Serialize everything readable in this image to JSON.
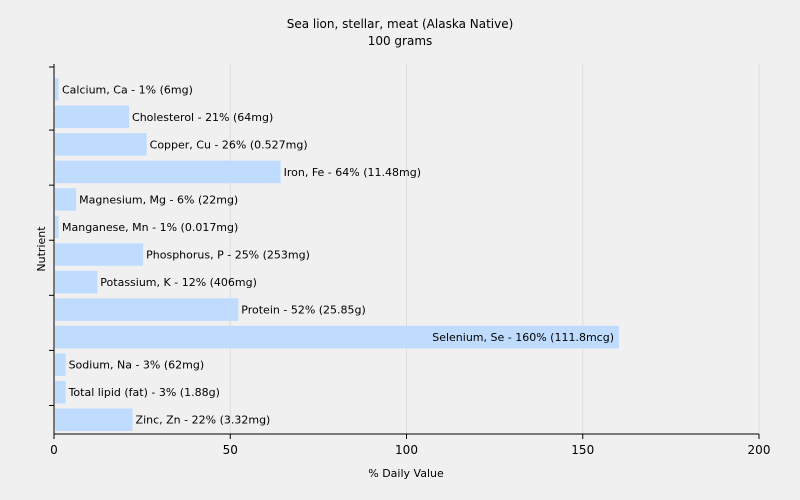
{
  "chart_data": {
    "type": "bar",
    "orientation": "horizontal",
    "title": "Sea lion, stellar, meat (Alaska Native)",
    "subtitle": "100 grams",
    "xlabel": "% Daily Value",
    "ylabel": "Nutrient",
    "xlim": [
      0,
      200
    ],
    "xticks": [
      0,
      50,
      100,
      150,
      200
    ],
    "grid": true,
    "bar_color": "#bfdcff",
    "categories": [
      "Calcium, Ca",
      "Cholesterol",
      "Copper, Cu",
      "Iron, Fe",
      "Magnesium, Mg",
      "Manganese, Mn",
      "Phosphorus, P",
      "Potassium, K",
      "Protein",
      "Selenium, Se",
      "Sodium, Na",
      "Total lipid (fat)",
      "Zinc, Zn"
    ],
    "values": [
      1,
      21,
      26,
      64,
      6,
      1,
      25,
      12,
      52,
      160,
      3,
      3,
      22
    ],
    "labels": [
      "Calcium, Ca - 1% (6mg)",
      "Cholesterol - 21% (64mg)",
      "Copper, Cu - 26% (0.527mg)",
      "Iron, Fe - 64% (11.48mg)",
      "Magnesium, Mg - 6% (22mg)",
      "Manganese, Mn - 1% (0.017mg)",
      "Phosphorus, P - 25% (253mg)",
      "Potassium, K - 12% (406mg)",
      "Protein - 52% (25.85g)",
      "Selenium, Se - 160% (111.8mcg)",
      "Sodium, Na - 3% (62mg)",
      "Total lipid (fat) - 3% (1.88g)",
      "Zinc, Zn - 22% (3.32mg)"
    ]
  }
}
